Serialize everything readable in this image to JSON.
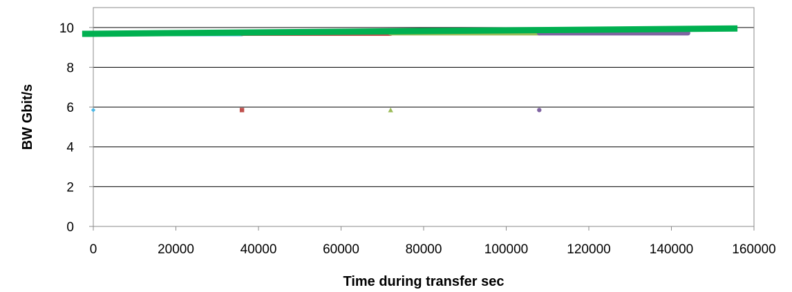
{
  "chart_data": {
    "type": "scatter",
    "title": "",
    "xlabel": "Time during transfer sec",
    "ylabel": "BW Gbit/s",
    "xlim": [
      0,
      160000
    ],
    "ylim": [
      0,
      11
    ],
    "x_ticks": [
      0,
      20000,
      40000,
      60000,
      80000,
      100000,
      120000,
      140000,
      160000
    ],
    "y_ticks": [
      0,
      2,
      4,
      6,
      8,
      10
    ],
    "grid": "horizontal",
    "legend": "none",
    "series": [
      {
        "color": "#4db8e6",
        "marker": "diamond",
        "points": [
          [
            0,
            5.85
          ],
          [
            36000,
            9.68
          ]
        ]
      },
      {
        "color": "#c0504d",
        "marker": "square",
        "points": [
          [
            36000,
            5.85
          ],
          [
            72000,
            9.7
          ]
        ]
      },
      {
        "color": "#9bbb59",
        "marker": "triangle",
        "points": [
          [
            72000,
            5.85
          ],
          [
            108000,
            9.72
          ]
        ]
      },
      {
        "color": "#8064a2",
        "marker": "circle",
        "points": [
          [
            108000,
            5.85
          ],
          [
            108000,
            9.72
          ],
          [
            144000,
            9.72
          ]
        ]
      },
      {
        "color": "#00b050",
        "marker": "none",
        "points": [
          [
            -2700,
            9.68
          ],
          [
            156000,
            9.95
          ]
        ]
      }
    ]
  }
}
